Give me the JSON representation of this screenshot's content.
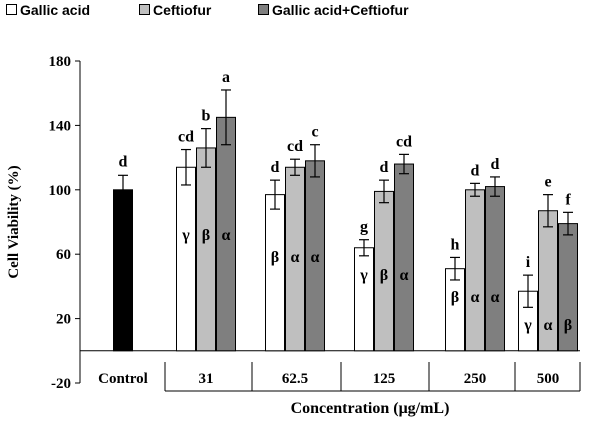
{
  "colors": {
    "control": "#000000",
    "gallic_acid": "#ffffff",
    "ceftiofur": "#bfbfbf",
    "combination": "#7f7f7f"
  },
  "chart_data": {
    "type": "bar",
    "title": "",
    "xlabel": "Concentration (μg/mL)",
    "ylabel": "Cell Viability (%)",
    "ylim": [
      -20,
      180
    ],
    "yticks": [
      -20,
      20,
      60,
      100,
      140,
      180
    ],
    "legend": {
      "placement": "top",
      "entries": [
        "Gallic acid",
        "Ceftiofur",
        "Gallic acid+Ceftiofur"
      ]
    },
    "control": {
      "label": "Control",
      "value": 100,
      "error": 9,
      "letter": "d"
    },
    "categories": [
      "31",
      "62.5",
      "125",
      "250",
      "500"
    ],
    "series": [
      {
        "name": "Gallic acid",
        "values": [
          114,
          97,
          64,
          51,
          37
        ],
        "errors": [
          11,
          9,
          5,
          7,
          10
        ],
        "letters": [
          "cd",
          "d",
          "g",
          "h",
          "i"
        ],
        "greek": [
          "γ",
          "β",
          "γ",
          "β",
          "γ"
        ]
      },
      {
        "name": "Ceftiofur",
        "values": [
          126,
          114,
          99,
          100,
          87
        ],
        "errors": [
          12,
          5,
          7,
          4,
          10
        ],
        "letters": [
          "b",
          "cd",
          "d",
          "d",
          "e"
        ],
        "greek": [
          "β",
          "α",
          "β",
          "α",
          "α"
        ]
      },
      {
        "name": "Gallic acid+Ceftiofur",
        "values": [
          145,
          118,
          116,
          102,
          79
        ],
        "errors": [
          17,
          10,
          6,
          6,
          7
        ],
        "letters": [
          "a",
          "c",
          "cd",
          "d",
          "f"
        ],
        "greek": [
          "α",
          "α",
          "α",
          "α",
          "β"
        ]
      }
    ]
  }
}
